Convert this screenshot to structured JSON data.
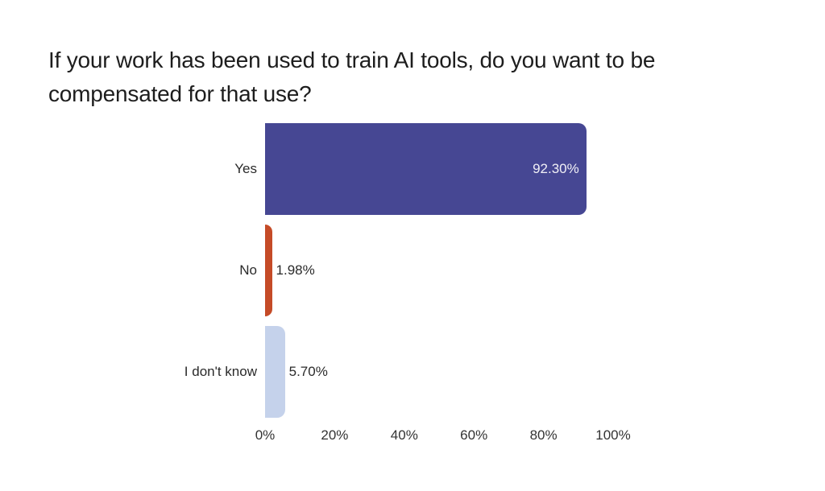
{
  "page": {
    "background": "#ffffff"
  },
  "chart_data": {
    "type": "bar",
    "orientation": "horizontal",
    "title": "If your work has been used to train AI tools, do you want to be compensated for that use?",
    "title_lines": [
      "If your work has been used to train AI tools, do you want to be",
      "compensated for that use?"
    ],
    "categories": [
      "Yes",
      "No",
      "I don't know"
    ],
    "values": [
      92.3,
      1.98,
      5.7
    ],
    "value_labels": [
      "92.30%",
      "1.98%",
      "5.70%"
    ],
    "value_label_position": [
      "inside",
      "outside",
      "outside"
    ],
    "bar_colors": [
      "#464793",
      "#C54B27",
      "#C5D2EB"
    ],
    "value_label_colors": [
      "#f1f0f6",
      "#2a2a2a",
      "#2a2a2a"
    ],
    "xlabel": "",
    "ylabel": "",
    "xlim": [
      0,
      100
    ],
    "x_ticks": [
      0,
      20,
      40,
      60,
      80,
      100
    ],
    "x_tick_labels": [
      "0%",
      "20%",
      "40%",
      "60%",
      "80%",
      "100%"
    ],
    "grid": "off",
    "legend": "none"
  }
}
